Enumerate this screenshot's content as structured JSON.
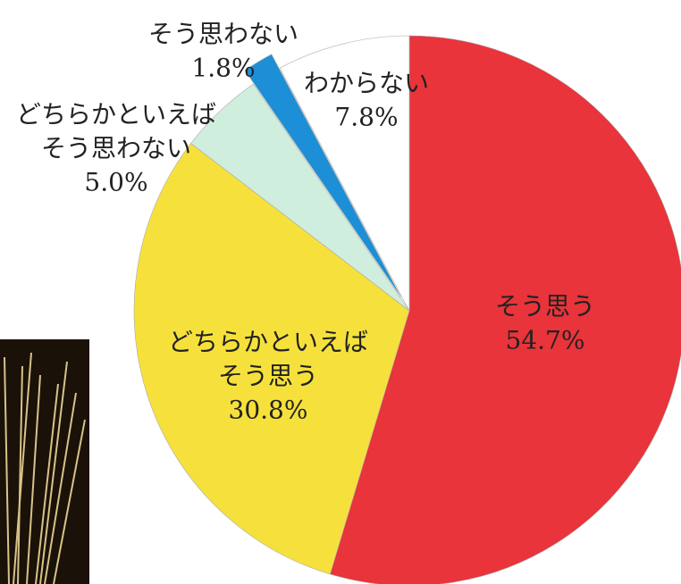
{
  "chart_data": {
    "type": "pie",
    "categories": [
      [
        "そう思う"
      ],
      [
        "どちらかといえば",
        "そう思う"
      ],
      [
        "どちらかといえば",
        "そう思わない"
      ],
      [
        "そう思わない"
      ],
      [
        "わからない"
      ]
    ],
    "values": [
      54.7,
      30.8,
      5.0,
      1.8,
      7.8
    ],
    "value_labels": [
      "54.7%",
      "30.8%",
      "5.0%",
      "1.8%",
      "7.8%"
    ],
    "colors": [
      "#e8343a",
      "#f6e13c",
      "#cfeede",
      "#1d8fd6",
      "#ffffff"
    ]
  }
}
